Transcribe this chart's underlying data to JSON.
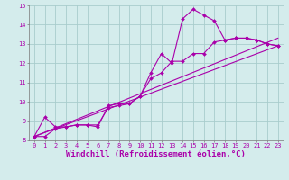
{
  "xlabel": "Windchill (Refroidissement éolien,°C)",
  "bg_color": "#d4ecec",
  "grid_color": "#a8cccc",
  "line_color": "#aa00aa",
  "xlim": [
    -0.5,
    23.5
  ],
  "ylim": [
    8,
    15
  ],
  "xticks": [
    0,
    1,
    2,
    3,
    4,
    5,
    6,
    7,
    8,
    9,
    10,
    11,
    12,
    13,
    14,
    15,
    16,
    17,
    18,
    19,
    20,
    21,
    22,
    23
  ],
  "yticks": [
    8,
    9,
    10,
    11,
    12,
    13,
    14,
    15
  ],
  "line1_x": [
    0,
    1,
    2,
    3,
    4,
    5,
    6,
    7,
    8,
    9,
    10,
    11,
    12,
    13,
    14,
    15,
    16,
    17,
    18,
    19,
    20,
    21,
    22,
    23
  ],
  "line1_y": [
    8.2,
    9.2,
    8.7,
    8.7,
    8.8,
    8.8,
    8.7,
    9.8,
    9.9,
    9.9,
    10.3,
    11.5,
    12.5,
    12.0,
    14.3,
    14.8,
    14.5,
    14.2,
    13.2,
    13.3,
    13.3,
    13.2,
    13.0,
    12.9
  ],
  "line2_x": [
    0,
    1,
    2,
    3,
    4,
    5,
    6,
    7,
    8,
    9,
    10,
    11,
    12,
    13,
    14,
    15,
    16,
    17,
    18,
    19,
    20,
    21,
    22,
    23
  ],
  "line2_y": [
    8.2,
    8.2,
    8.6,
    8.7,
    8.8,
    8.8,
    8.8,
    9.7,
    9.8,
    9.9,
    10.3,
    11.2,
    11.5,
    12.1,
    12.1,
    12.5,
    12.5,
    13.1,
    13.2,
    13.3,
    13.3,
    13.2,
    13.0,
    12.9
  ],
  "line3_x": [
    0,
    23
  ],
  "line3_y": [
    8.2,
    12.9
  ],
  "line4_x": [
    0,
    23
  ],
  "line4_y": [
    8.2,
    13.3
  ],
  "tick_fontsize": 5.0,
  "xlabel_fontsize": 6.5
}
